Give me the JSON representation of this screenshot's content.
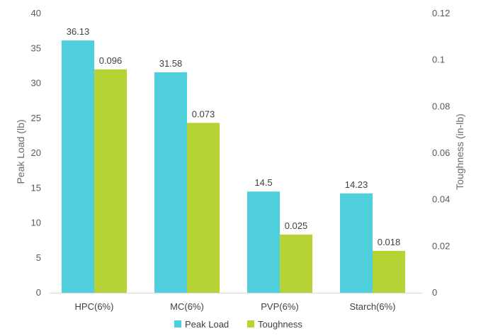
{
  "chart_data": {
    "type": "bar",
    "categories": [
      "HPC(6%)",
      "MC(6%)",
      "PVP(6%)",
      "Starch(6%)"
    ],
    "series": [
      {
        "name": "Peak Load",
        "axis": "left",
        "color": "#4fcfdc",
        "values": [
          36.13,
          31.58,
          14.5,
          14.23
        ],
        "labels": [
          "36.13",
          "31.58",
          "14.5",
          "14.23"
        ]
      },
      {
        "name": "Toughness",
        "axis": "right",
        "color": "#b5d334",
        "values": [
          0.096,
          0.073,
          0.025,
          0.018
        ],
        "labels": [
          "0.096",
          "0.073",
          "0.025",
          "0.018"
        ]
      }
    ],
    "ylabel_left": "Peak Load (lb)",
    "ylabel_right": "Toughness (in-lb)",
    "ylim_left": [
      0,
      40
    ],
    "ylim_right": [
      0,
      0.12
    ],
    "yticks_left": [
      "0",
      "5",
      "10",
      "15",
      "20",
      "25",
      "30",
      "35",
      "40"
    ],
    "yticks_right": [
      "0",
      "0.02",
      "0.04",
      "0.06",
      "0.08",
      "0.1",
      "0.12"
    ],
    "grid": false,
    "legend_position": "bottom"
  }
}
